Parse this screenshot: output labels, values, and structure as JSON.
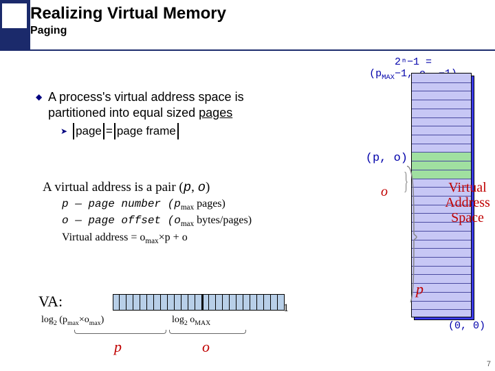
{
  "title": "Realizing Virtual Memory",
  "subtitle": "Paging",
  "bullet": {
    "line1": "A process's virtual address space is",
    "line2_a": "partitioned into equal sized ",
    "line2_u": "pages",
    "sub_page": "page",
    "sub_eq": " = ",
    "sub_frame": "page frame"
  },
  "va_pair": {
    "heading_a": "A virtual address is a pair (",
    "heading_p": "p",
    "heading_c": ", ",
    "heading_o": "o",
    "heading_b": ")",
    "line_p": "p    — page number (p",
    "line_p_sub": "max",
    "line_p_tail": " pages)",
    "line_o": "o    — page offset (o",
    "line_o_sub": "max",
    "line_o_tail": " bytes/pages)",
    "line_va": "Virtual address = o",
    "line_va_sub": "max",
    "line_va_mid": "×p + o"
  },
  "diagram": {
    "top_eq_l1": "2ⁿ−1 =",
    "top_eq_l2a": "(p",
    "top_eq_l2b": "MAX",
    "top_eq_l2c": "−1, o",
    "top_eq_l2d": "MAX",
    "top_eq_l2e": "−1)",
    "po_label": "(p, o)",
    "o_label": "o",
    "p_label": "p",
    "vas_l1": "Virtual",
    "vas_l2": "Address",
    "vas_l3": "Space",
    "zero": "(0, 0)",
    "stripes": 28,
    "highlight_start": 9,
    "highlight_span": 3,
    "colors": {
      "cyl_bg": "#c7c7f5",
      "cyl_shadow": "#3a3af0",
      "stripe": "#4a4aa0",
      "highlight": "#a0e0a0"
    }
  },
  "va_row": {
    "label": "VA:",
    "num_bits": 25,
    "split_bit": 13,
    "log1_a": "log",
    "log1_sub": "2",
    "log1_b": " (p",
    "log1_c": "max",
    "log1_d": "×o",
    "log1_e": "max",
    "log1_f": ")",
    "log2_a": "log",
    "log2_sub": "2",
    "log2_b": " o",
    "log2_c": "MAX",
    "one": "1",
    "p": "p",
    "o": "o",
    "bit_color": "#b8cfe8"
  },
  "pagenum": "7"
}
